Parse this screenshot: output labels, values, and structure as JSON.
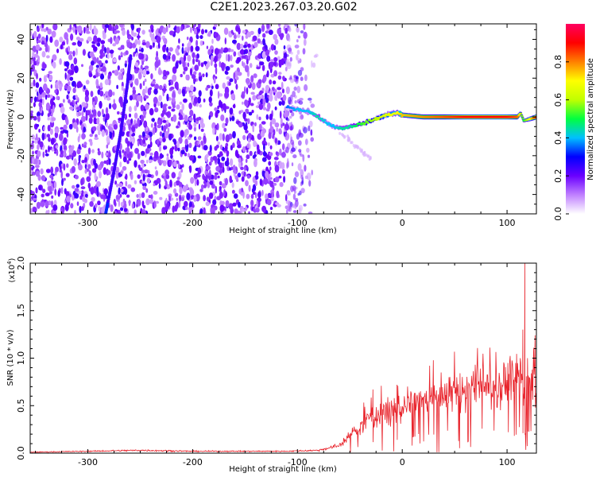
{
  "title": "C2E1.2023.267.03.20.G02",
  "chart_data": [
    {
      "type": "heatmap",
      "xlabel": "Height of straight line (km)",
      "ylabel": "Frequency (Hz)",
      "xlim": [
        -355,
        128
      ],
      "ylim": [
        -50,
        48
      ],
      "xticks": [
        -300,
        -200,
        -100,
        0,
        100
      ],
      "yticks": [
        -40,
        -20,
        0,
        20,
        40
      ],
      "colorbar": {
        "label": "Normalized spectral amplitude",
        "range": [
          0,
          1
        ],
        "ticks": [
          0.0,
          0.2,
          0.4,
          0.6,
          0.8
        ],
        "colors": [
          "#ffffff",
          "#c080ff",
          "#6a00ff",
          "#0000ff",
          "#00c0ff",
          "#00ff40",
          "#c0ff00",
          "#ffff00",
          "#ff8000",
          "#ff0000",
          "#ff0060"
        ]
      },
      "noise_region_x": [
        -355,
        -80
      ],
      "noise_fade_x": [
        -110,
        -75
      ],
      "drift_line": {
        "x": [
          -283,
          -275,
          -268,
          -262,
          -259
        ],
        "y": [
          -50,
          -28,
          -6,
          18,
          32
        ]
      },
      "signal_ridge": {
        "x": [
          -110,
          -100,
          -90,
          -80,
          -72,
          -65,
          -58,
          -50,
          -42,
          -35,
          -25,
          -15,
          -5,
          0,
          20,
          40,
          60,
          80,
          100,
          110,
          113,
          116,
          128
        ],
        "y": [
          5,
          4,
          3,
          0,
          -3,
          -5,
          -6,
          -5,
          -4,
          -3,
          -1,
          1,
          2,
          1,
          0,
          0,
          0,
          0,
          0,
          0,
          2,
          -2,
          0
        ],
        "amplitude": [
          0.35,
          0.4,
          0.4,
          0.45,
          0.4,
          0.4,
          0.45,
          0.45,
          0.5,
          0.55,
          0.6,
          0.65,
          0.7,
          0.75,
          0.8,
          0.85,
          0.9,
          0.9,
          0.9,
          0.85,
          0.6,
          0.5,
          0.9
        ]
      }
    },
    {
      "type": "line",
      "xlabel": "Height of straight line (km)",
      "ylabel": "SNR (10 * v/v)",
      "y_exponent": "(x10",
      "y_exponent_power": "4",
      "y_exponent_close": ")",
      "xlim": [
        -355,
        128
      ],
      "ylim": [
        0,
        2.0
      ],
      "xticks": [
        -300,
        -200,
        -100,
        0,
        100
      ],
      "yticks": [
        0.0,
        0.5,
        1.0,
        1.5,
        2.0
      ],
      "color": "#e8222a",
      "series_envelope": {
        "x": [
          -355,
          -300,
          -250,
          -200,
          -150,
          -110,
          -80,
          -60,
          -50,
          -40,
          -30,
          -20,
          -10,
          0,
          10,
          20,
          30,
          40,
          50,
          60,
          70,
          80,
          90,
          100,
          105,
          110,
          113,
          116,
          120,
          125,
          128
        ],
        "y": [
          0.01,
          0.02,
          0.03,
          0.02,
          0.02,
          0.02,
          0.03,
          0.08,
          0.18,
          0.28,
          0.38,
          0.42,
          0.45,
          0.48,
          0.52,
          0.55,
          0.58,
          0.6,
          0.63,
          0.66,
          0.68,
          0.7,
          0.72,
          0.74,
          0.75,
          0.76,
          0.9,
          0.6,
          0.78,
          0.75,
          0.72
        ]
      },
      "spikes": [
        {
          "x": 117.0,
          "y": 2.05
        },
        {
          "x": 115.0,
          "y": 1.3
        },
        {
          "x": 119.5,
          "y": 1.0
        },
        {
          "x": -5.0,
          "y": 0.72
        },
        {
          "x": -28.0,
          "y": 0.67
        }
      ]
    }
  ]
}
